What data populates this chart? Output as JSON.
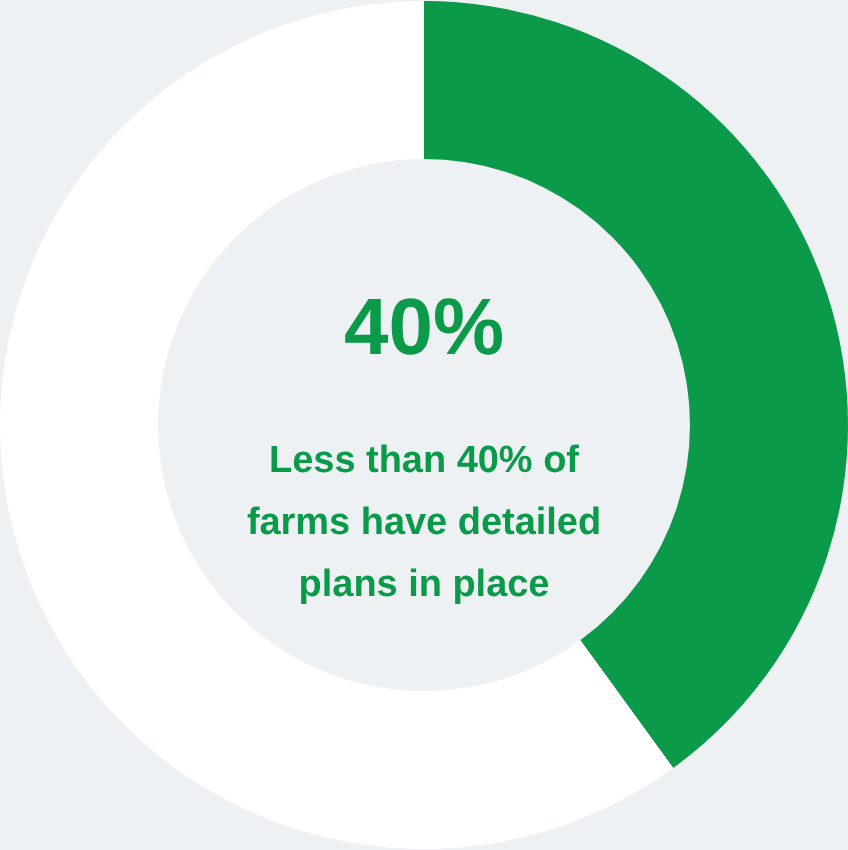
{
  "chart_data": {
    "type": "donut",
    "categories": [
      null,
      null
    ],
    "values": [
      40,
      60
    ],
    "colors": [
      "#0a9a4a",
      "#ffffff"
    ],
    "annotations": [
      "40%",
      "Less than 40% of farms have detailed plans in place"
    ]
  }
}
